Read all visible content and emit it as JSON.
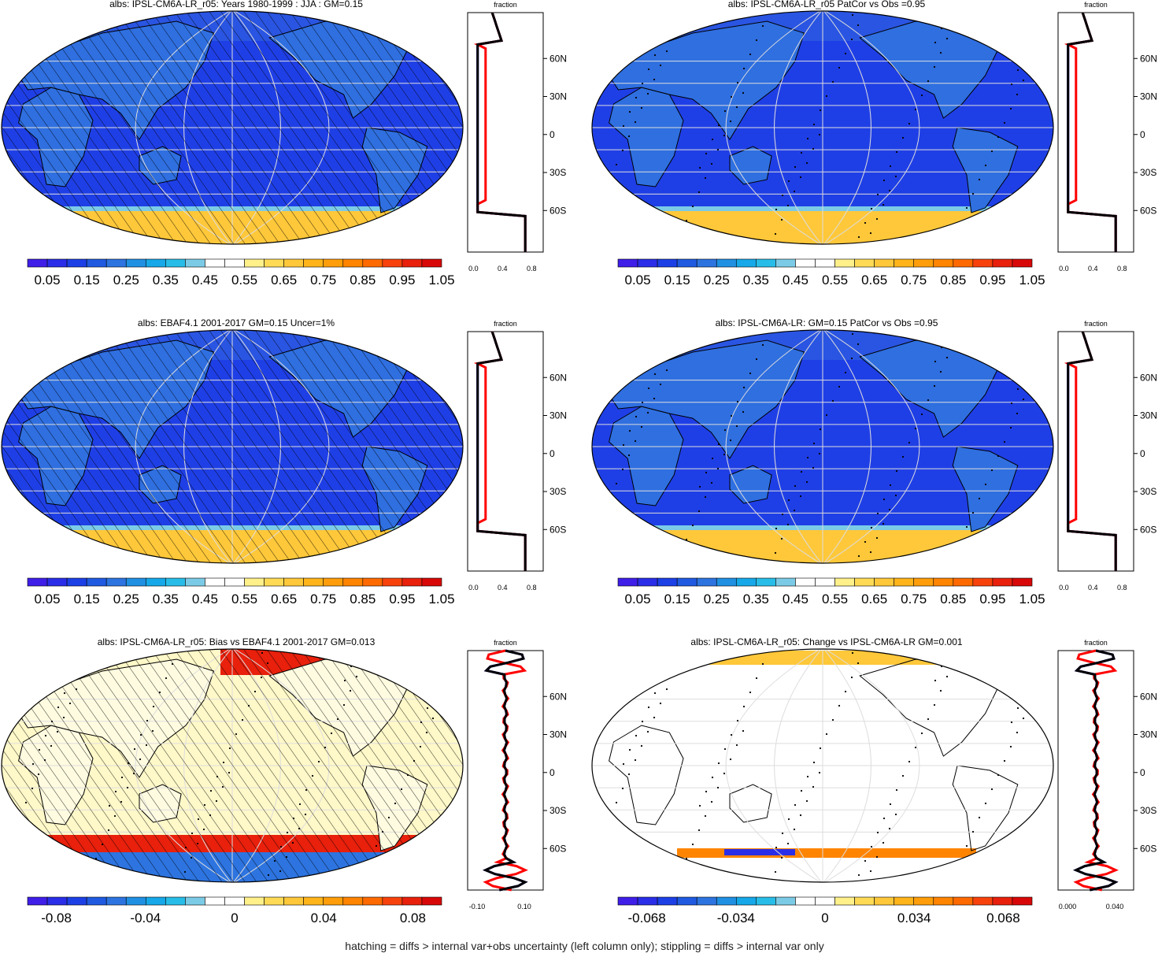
{
  "colors": {
    "seq": [
      "#3f1ee8",
      "#2a2ee8",
      "#1c40e6",
      "#1f5ae0",
      "#2d74e0",
      "#2090e2",
      "#16a8e8",
      "#28bde8",
      "#7ccbe6",
      "#ffffff",
      "#ffffff",
      "#fff08a",
      "#ffdb55",
      "#ffc83a",
      "#ffb41a",
      "#ff9e0a",
      "#ff8400",
      "#ff6a00",
      "#f8420c",
      "#e8200c",
      "#d80808"
    ],
    "div": [
      "#3f1ee8",
      "#2a2ee8",
      "#1c40e6",
      "#1f5ae0",
      "#2d74e0",
      "#2090e2",
      "#16a8e8",
      "#28bde8",
      "#7ccbe6",
      "#ffffff",
      "#ffffff",
      "#fff08a",
      "#ffdb55",
      "#ffc83a",
      "#ffb41a",
      "#ff9e0a",
      "#ff8400",
      "#ff6a00",
      "#f8420c",
      "#e8200c",
      "#d80808"
    ],
    "model": "#ff0000",
    "obs": "#000000",
    "ref": "#0000ff"
  },
  "zonal_common": {
    "title": "fraction",
    "lat_labels": [
      "60N",
      "30N",
      "0",
      "30S",
      "60S"
    ]
  },
  "panels": [
    {
      "id": "p1",
      "title": "albs: IPSL-CM6A-LR_r05: Years 1980-1999 : JJA : GM=0.15",
      "hatch": true,
      "stipple": false,
      "bg": "blue",
      "cbar_labels": [
        "0.05",
        "0.15",
        "0.25",
        "0.35",
        "0.45",
        "0.55",
        "0.65",
        "0.75",
        "0.85",
        "0.95",
        "1.05"
      ],
      "zonal_xticks": [
        "0.0",
        "0.4",
        "0.8"
      ]
    },
    {
      "id": "p2",
      "title": "albs: IPSL-CM6A-LR_r05 PatCor vs Obs =0.95",
      "hatch": false,
      "stipple": true,
      "bg": "blue",
      "cbar_labels": [
        "0.05",
        "0.15",
        "0.25",
        "0.35",
        "0.45",
        "0.55",
        "0.65",
        "0.75",
        "0.85",
        "0.95",
        "1.05"
      ],
      "zonal_xticks": [
        "0.0",
        "0.4",
        "0.8"
      ]
    },
    {
      "id": "p3",
      "title": "albs: EBAF4.1 2001-2017 GM=0.15 Uncer=1%",
      "hatch": true,
      "stipple": false,
      "bg": "blue",
      "cbar_labels": [
        "0.05",
        "0.15",
        "0.25",
        "0.35",
        "0.45",
        "0.55",
        "0.65",
        "0.75",
        "0.85",
        "0.95",
        "1.05"
      ],
      "zonal_xticks": [
        "0.0",
        "0.4",
        "0.8"
      ]
    },
    {
      "id": "p4",
      "title": "albs: IPSL-CM6A-LR: GM=0.15 PatCor vs Obs =0.95",
      "hatch": false,
      "stipple": true,
      "bg": "blue",
      "cbar_labels": [
        "0.05",
        "0.15",
        "0.25",
        "0.35",
        "0.45",
        "0.55",
        "0.65",
        "0.75",
        "0.85",
        "0.95",
        "1.05"
      ],
      "zonal_xticks": [
        "0.0",
        "0.4",
        "0.8"
      ]
    },
    {
      "id": "p5",
      "title": "albs: IPSL-CM6A-LR_r05: Bias vs EBAF4.1 2001-2017 GM=0.013",
      "hatch": true,
      "stipple": true,
      "bg": "bias",
      "cbar_labels": [
        "-0.08",
        "-0.04",
        "0",
        "0.04",
        "0.08"
      ],
      "zonal_xticks": [
        "-0.10",
        "0.10"
      ]
    },
    {
      "id": "p6",
      "title": "albs: IPSL-CM6A-LR_r05: Change vs IPSL-CM6A-LR GM=0.001",
      "hatch": false,
      "stipple": true,
      "bg": "change",
      "cbar_labels": [
        "-0.068",
        "-0.034",
        "0",
        "0.034",
        "0.068"
      ],
      "zonal_xticks": [
        "0.000",
        "0.040"
      ]
    }
  ],
  "footer": "hatching = diffs > internal var+obs uncertainty (left column only); stippling = diffs > internal var only"
}
